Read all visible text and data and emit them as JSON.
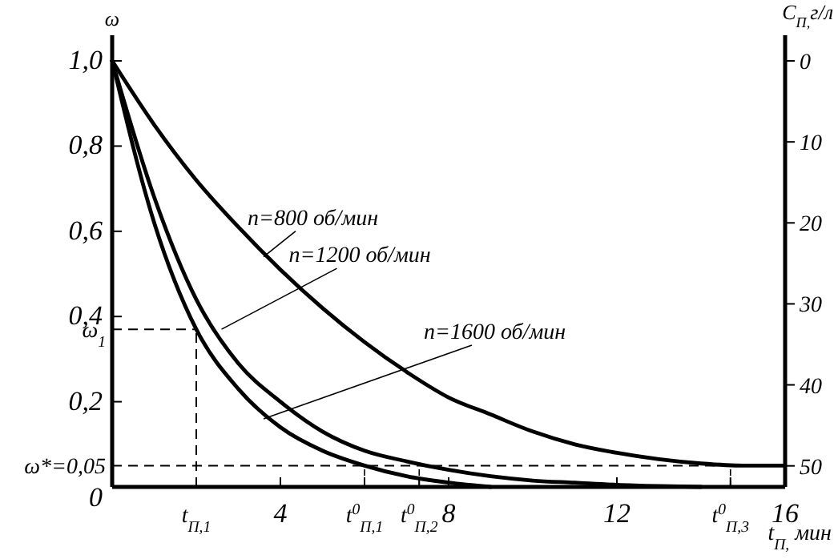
{
  "chart_data": {
    "type": "line",
    "xlabel": "t$_{П,}$ мин",
    "ylabel": "ω",
    "y2label": "C$_{П,}$г/л",
    "xlim": [
      0,
      16
    ],
    "ylim": [
      0,
      1.06
    ],
    "y2lim": [
      52.6,
      -3.16
    ],
    "xticks": [
      {
        "value": 2,
        "label": null
      },
      4,
      {
        "value": 6,
        "label": null
      },
      {
        "value": 7.3,
        "label": null
      },
      8,
      12,
      {
        "value": 14.7,
        "label": null
      },
      16
    ],
    "yticks": [
      0,
      {
        "value": 0.2,
        "label": "0,2"
      },
      {
        "value": 0.4,
        "label": "0,4"
      },
      {
        "value": 0.6,
        "label": "0,6"
      },
      {
        "value": 0.8,
        "label": "0,8"
      },
      {
        "value": 1,
        "label": "1,0"
      }
    ],
    "y2ticks": [
      0,
      10,
      20,
      30,
      40,
      50
    ],
    "x": [
      0,
      1,
      2,
      3,
      4,
      5,
      6,
      7,
      8,
      9,
      10,
      11,
      12,
      13,
      14,
      15,
      16
    ],
    "series": [
      {
        "color": "#000000",
        "values": [
          1.0,
          0.85,
          0.72,
          0.61,
          0.51,
          0.42,
          0.34,
          0.27,
          0.21,
          0.17,
          0.13,
          0.1,
          0.08,
          0.065,
          0.055,
          0.05,
          0.05
        ]
      },
      {
        "color": "#000000",
        "values": [
          1.0,
          0.68,
          0.44,
          0.29,
          0.2,
          0.13,
          0.085,
          0.06,
          0.04,
          0.025,
          0.015,
          0.01,
          0.005,
          0.002,
          0,
          null,
          null
        ]
      },
      {
        "color": "#000000",
        "values": [
          1.0,
          0.62,
          0.37,
          0.23,
          0.14,
          0.085,
          0.05,
          0.025,
          0.01,
          0,
          null,
          null,
          null,
          null,
          null,
          null,
          null
        ]
      }
    ],
    "ref_lines": [
      {
        "axis": "y",
        "value": 0.05,
        "line_style": "dashed"
      },
      {
        "axis": "y",
        "value": 0.37,
        "line_style": "dashed"
      },
      {
        "axis": "x",
        "value": 2,
        "line_style": "dashed"
      }
    ],
    "annotations": [
      {
        "text": "n=800 об/мин",
        "x": 3.6,
        "y": 0.54
      },
      {
        "text": "n=1200 об/мин",
        "x": 2.6,
        "y": 0.37
      },
      {
        "text": "n=1600  об/мин",
        "x": 3.6,
        "y": 0.16
      },
      {
        "text": "t$_{П,1}$",
        "x": 2,
        "y": 0
      },
      {
        "text": "t$^{0}$$_{П,1}$",
        "x": 6,
        "y": 0.05
      },
      {
        "text": "t$^{0}$$_{П,2}$",
        "x": 7.3,
        "y": 0.05
      },
      {
        "text": "t$^{0}$$_{П,3}$",
        "x": 14.7,
        "y": 0.05
      },
      {
        "text": "ω$_{1}$",
        "x": 0,
        "y": 0.37
      },
      {
        "text": "ω*=0,05",
        "x": 0,
        "y": 0.05
      }
    ],
    "grid": false,
    "marker": "none",
    "line_style": "solid"
  }
}
